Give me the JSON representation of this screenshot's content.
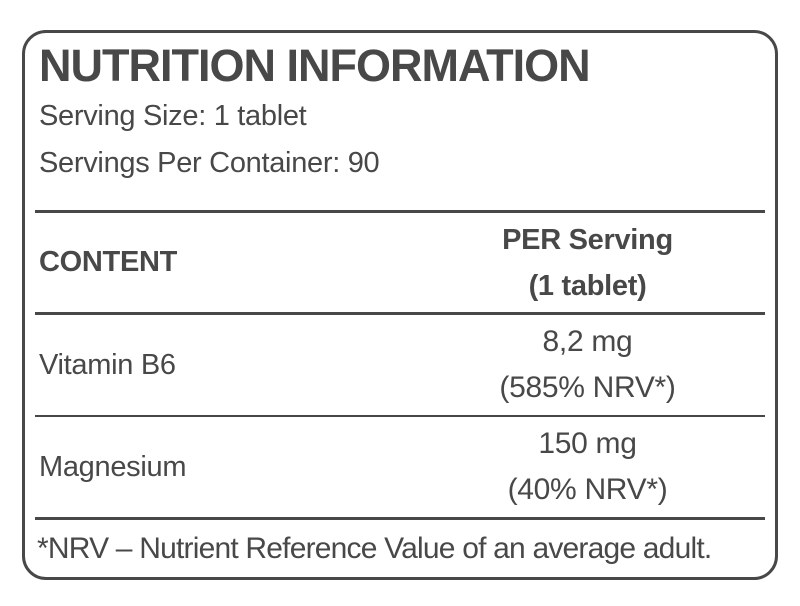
{
  "label": {
    "title": "NUTRITION INFORMATION",
    "serving_size": "Serving Size: 1 tablet",
    "servings_per_container": "Servings Per Container: 90",
    "table": {
      "content_header": "CONTENT",
      "per_serving_header_line1": "PER Serving",
      "per_serving_header_line2": "(1 tablet)",
      "rows": [
        {
          "name": "Vitamin B6",
          "amount": "8,2 mg",
          "nrv": "(585% NRV*)"
        },
        {
          "name": "Magnesium",
          "amount": "150 mg",
          "nrv": "(40% NRV*)"
        }
      ]
    },
    "footnote": "*NRV – Nutrient Reference Value of an average adult.",
    "colors": {
      "text": "#484848",
      "border": "#484848",
      "background": "#ffffff"
    }
  }
}
